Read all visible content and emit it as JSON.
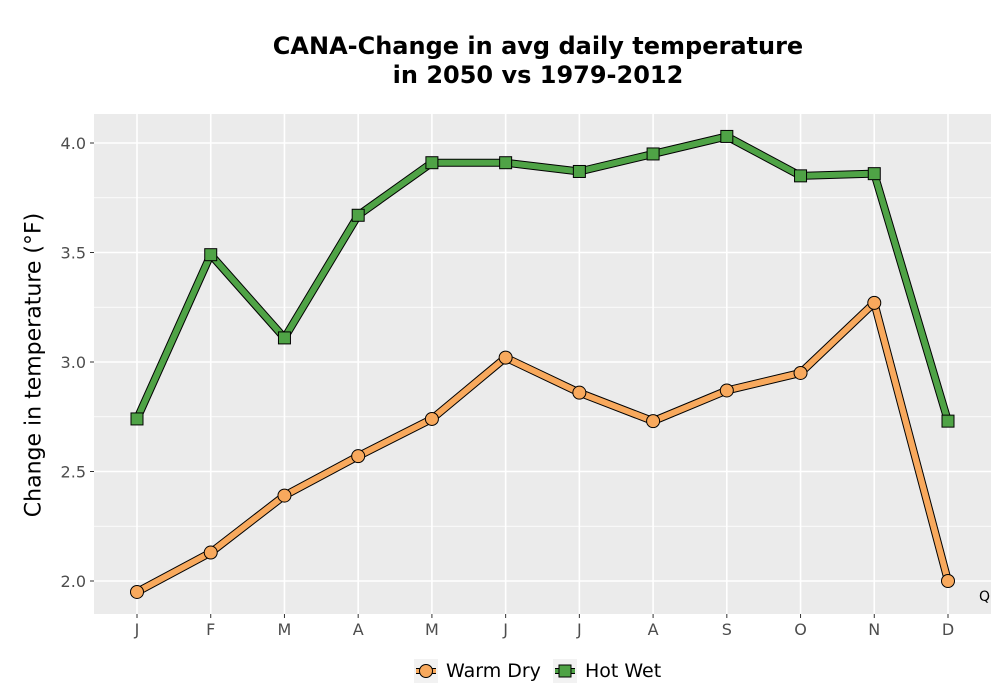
{
  "title_line1": "CANA-Change in avg daily temperature",
  "title_line2": "in 2050 vs 1979-2012",
  "chart_data": {
    "type": "line",
    "title": "CANA-Change in avg daily temperature in 2050 vs 1979-2012",
    "xlabel": "",
    "ylabel": "Change in temperature (°F)",
    "categories": [
      "J",
      "F",
      "M",
      "A",
      "M",
      "J",
      "J",
      "A",
      "S",
      "O",
      "N",
      "D"
    ],
    "yticks": [
      2.0,
      2.5,
      3.0,
      3.5,
      4.0
    ],
    "ytick_labels": [
      "2.0",
      "2.5",
      "3.0",
      "3.5",
      "4.0"
    ],
    "ylim": [
      1.85,
      4.15
    ],
    "grid": true,
    "legend_position": "bottom",
    "series": [
      {
        "name": "Warm Dry",
        "marker": "circle",
        "color": "#f8a95d",
        "values": [
          1.95,
          2.13,
          2.39,
          2.57,
          2.74,
          3.02,
          2.86,
          2.73,
          2.87,
          2.95,
          3.27,
          2.0
        ]
      },
      {
        "name": "Hot Wet",
        "marker": "square",
        "color": "#4fa346",
        "values": [
          2.74,
          3.49,
          3.11,
          3.67,
          3.91,
          3.91,
          3.87,
          3.95,
          4.03,
          3.85,
          3.86,
          2.73
        ]
      }
    ],
    "corner_label": "Q"
  }
}
